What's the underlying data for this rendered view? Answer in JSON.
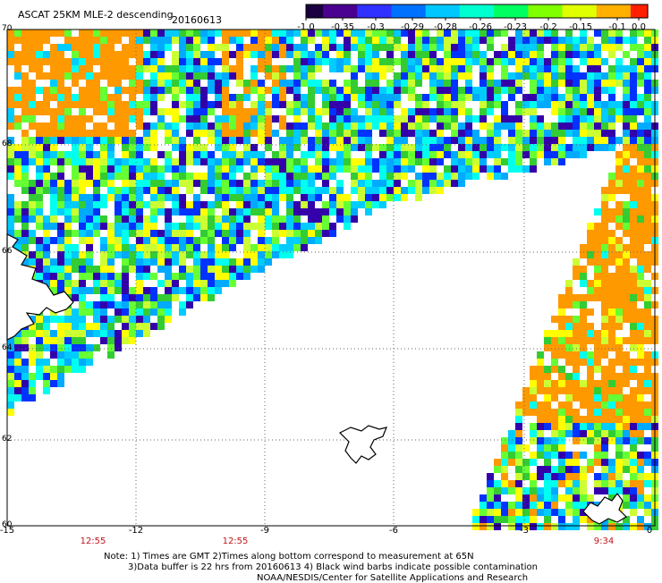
{
  "header": {
    "title": "ASCAT 25KM MLE-2 descending",
    "date": "20160613"
  },
  "colorbar": {
    "ticks": [
      "-1.0",
      "-0.35",
      "-0.3",
      "-0.29",
      "-0.28",
      "-0.26",
      "-0.23",
      "-0.2",
      "-0.15",
      "-0.1",
      "0.0"
    ],
    "colors": [
      "#1a0040",
      "#4a0090",
      "#3030ff",
      "#0070ff",
      "#00c8ff",
      "#00ffd0",
      "#00ff60",
      "#80ff00",
      "#e0ff00",
      "#ffb000",
      "#ff2000"
    ]
  },
  "map": {
    "lat_labels": [
      "70",
      "68",
      "66",
      "64",
      "62",
      "60"
    ],
    "lon_labels": [
      "-15",
      "-12",
      "-9",
      "-6",
      "-3",
      "0"
    ],
    "time_labels": [
      "12:55",
      "12:55",
      "9:34"
    ],
    "palette": [
      "#ff9900",
      "#00ccff",
      "#00ffee",
      "#66ff33",
      "#33cc33",
      "#ccff33",
      "#ffff00",
      "#0033ff",
      "#3300aa",
      "#00aaff"
    ],
    "coast_color": "#000000",
    "grid_color": "#666666"
  },
  "notes": {
    "line1": "Note: 1) Times are GMT 2)Times along bottom correspond to measurement at 65N",
    "line2": "3)Data buffer is 22 hrs from 20160613 4) Black wind barbs indicate possible contamination",
    "line3": "NOAA/NESDIS/Center for Satellite Applications and Research"
  }
}
